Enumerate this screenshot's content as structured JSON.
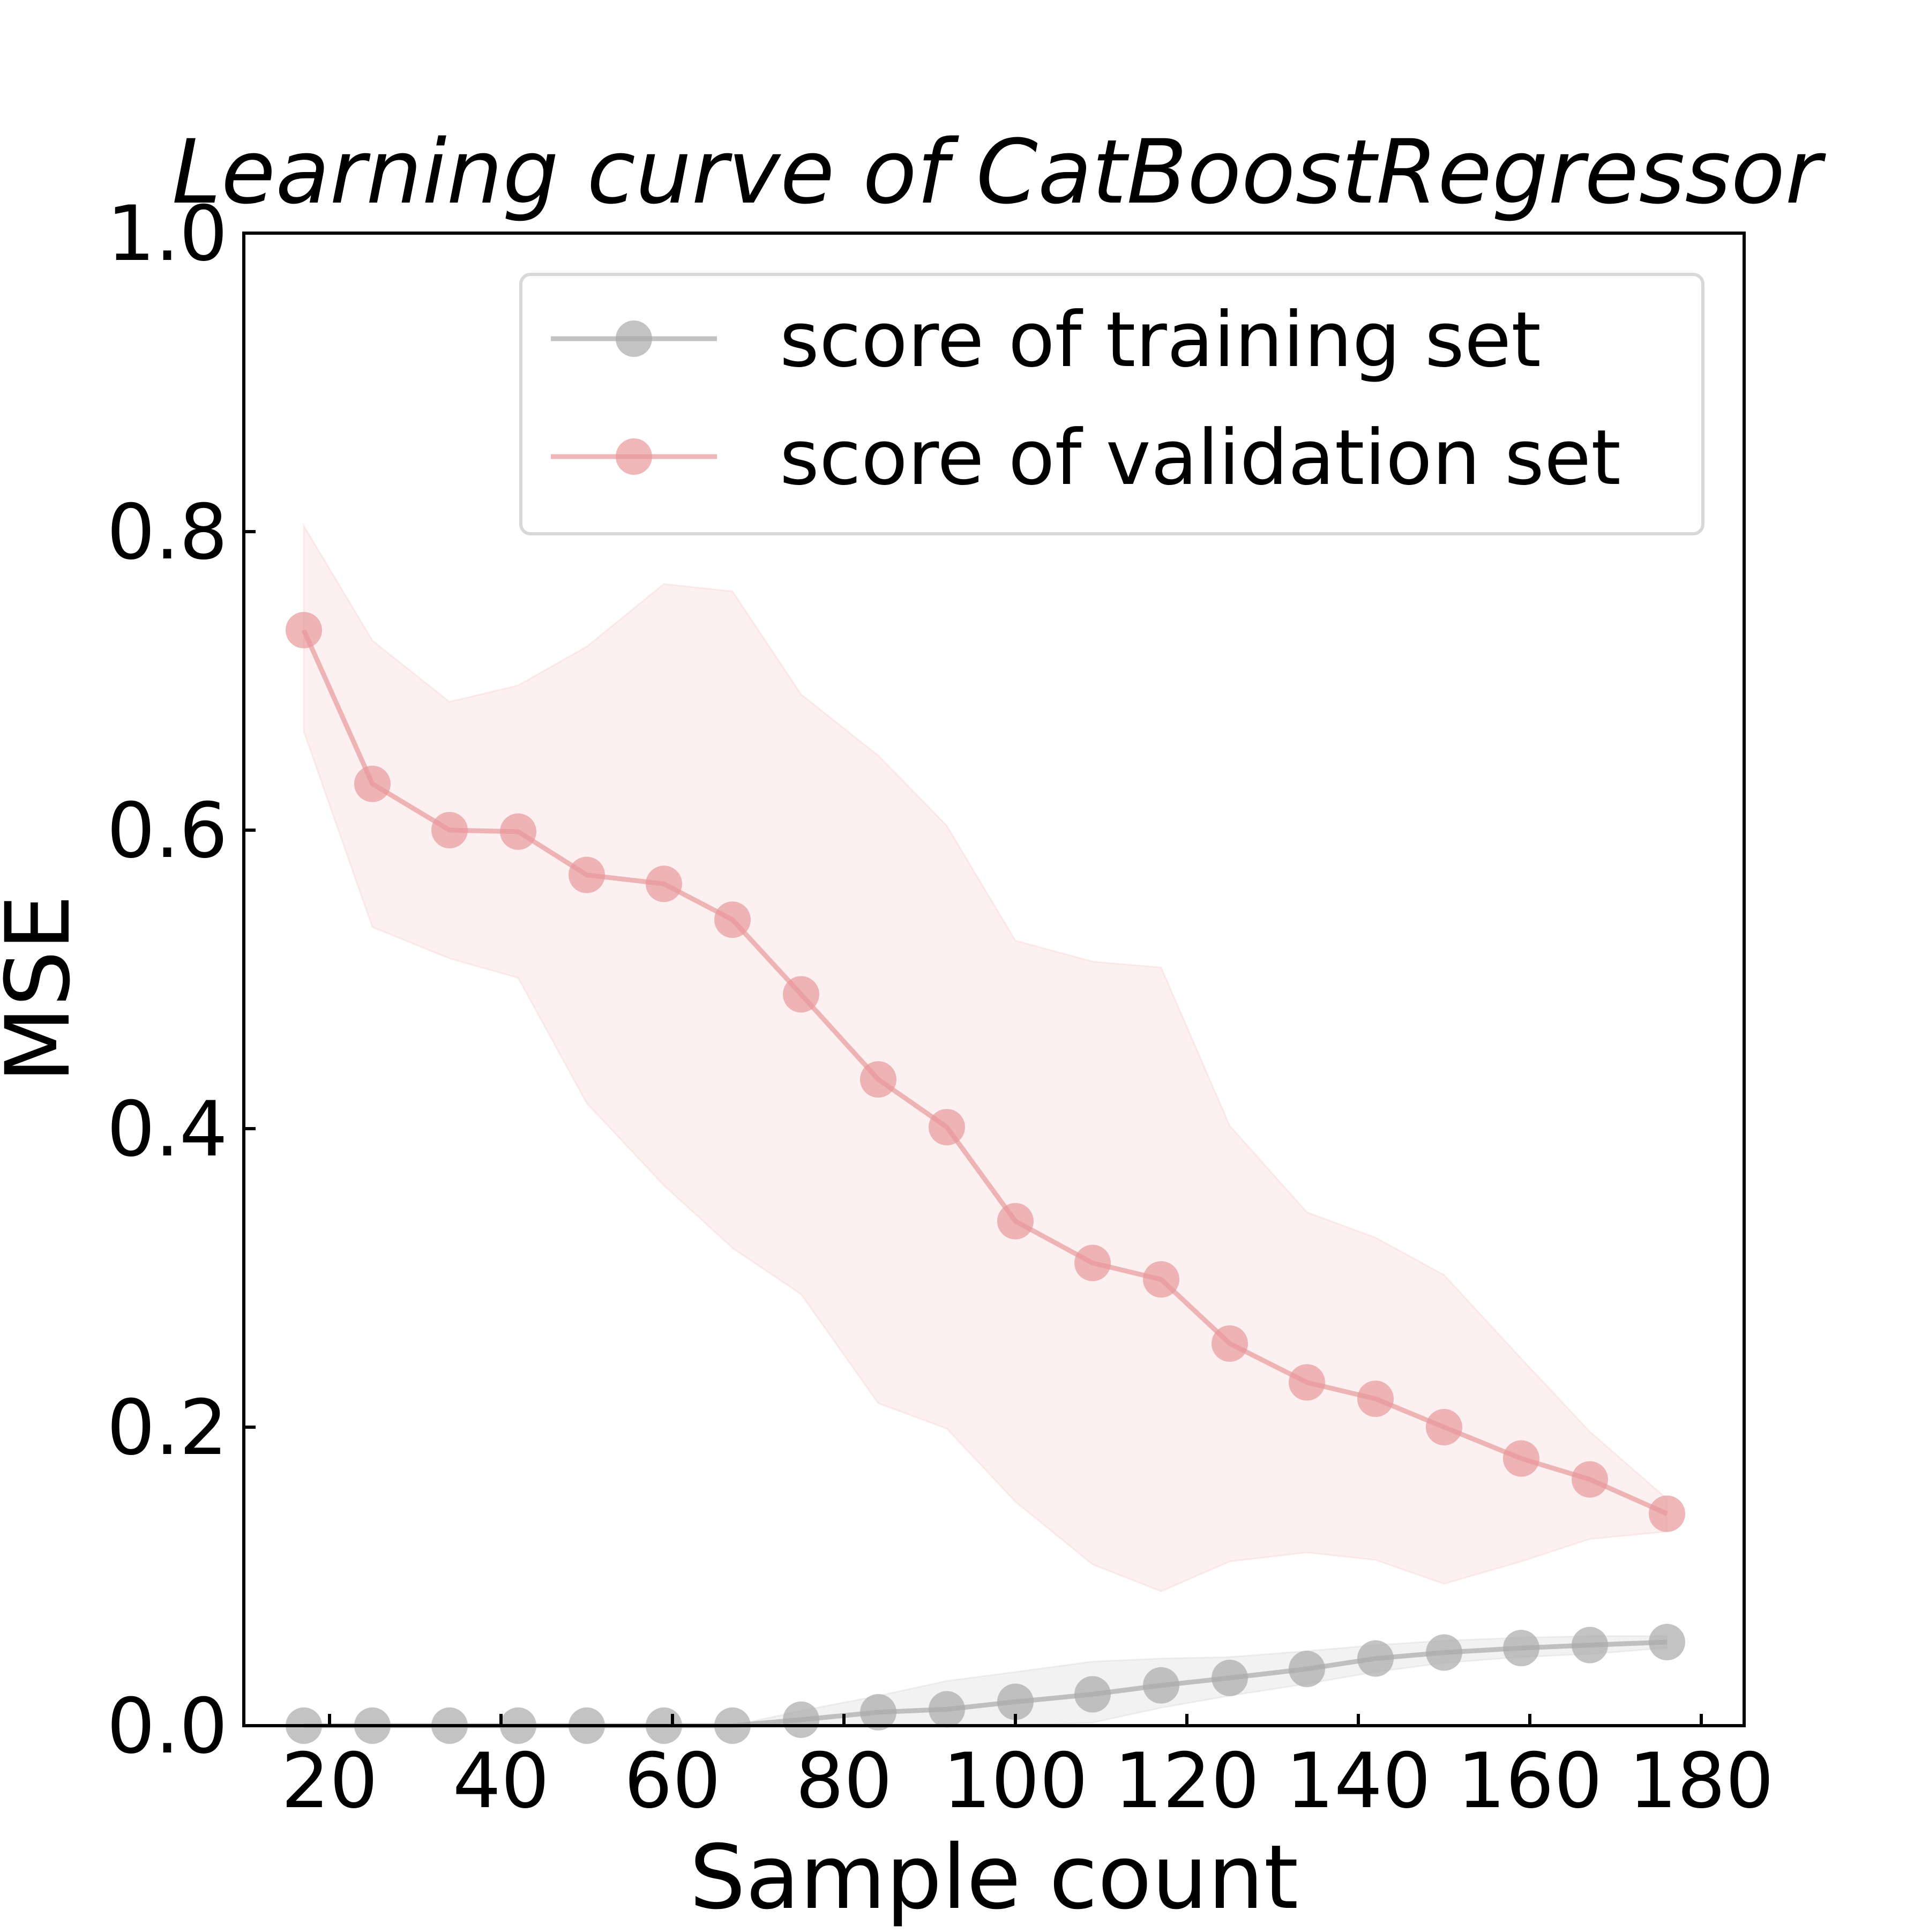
{
  "chart_data": {
    "type": "line",
    "title": "Learning curve of CatBoostRegressor",
    "xlabel": "Sample count",
    "ylabel": "MSE",
    "xlim": [
      10,
      185
    ],
    "ylim": [
      0.0,
      1.0
    ],
    "xticks": [
      "20",
      "40",
      "60",
      "80",
      "100",
      "120",
      "140",
      "160",
      "180"
    ],
    "xtick_values": [
      20,
      40,
      60,
      80,
      100,
      120,
      140,
      160,
      180
    ],
    "yticks": [
      "0.0",
      "0.2",
      "0.4",
      "0.6",
      "0.8",
      "1.0"
    ],
    "ytick_values": [
      0.0,
      0.2,
      0.4,
      0.6,
      0.8,
      1.0
    ],
    "grid": false,
    "legend_position": "top-right",
    "x": [
      17,
      25,
      34,
      42,
      50,
      59,
      67,
      75,
      84,
      92,
      100,
      109,
      117,
      125,
      134,
      142,
      150,
      159,
      167,
      176
    ],
    "series": [
      {
        "name": "score of training set",
        "color": "#a9a9a9",
        "values": [
          0.0,
          0.0,
          0.0,
          0.0,
          0.0,
          0.0,
          0.0,
          0.004,
          0.009,
          0.011,
          0.016,
          0.021,
          0.027,
          0.032,
          0.038,
          0.045,
          0.049,
          0.052,
          0.054,
          0.056
        ],
        "band_upper": [
          0.0,
          0.0,
          0.0,
          0.0,
          0.0,
          0.0,
          0.0,
          0.01,
          0.02,
          0.03,
          0.036,
          0.043,
          0.045,
          0.046,
          0.05,
          0.054,
          0.057,
          0.059,
          0.06,
          0.06
        ],
        "band_lower": [
          0.0,
          0.0,
          0.0,
          0.0,
          0.0,
          0.0,
          0.0,
          0.0,
          0.0,
          0.0,
          0.0,
          0.002,
          0.012,
          0.02,
          0.028,
          0.036,
          0.042,
          0.046,
          0.048,
          0.052
        ]
      },
      {
        "name": "score of validation set",
        "color": "#e8999a",
        "values": [
          0.734,
          0.631,
          0.6,
          0.599,
          0.57,
          0.564,
          0.54,
          0.49,
          0.433,
          0.401,
          0.338,
          0.31,
          0.299,
          0.256,
          0.23,
          0.219,
          0.2,
          0.179,
          0.165,
          0.142
        ],
        "band_upper": [
          0.804,
          0.727,
          0.686,
          0.697,
          0.723,
          0.765,
          0.76,
          0.691,
          0.65,
          0.603,
          0.526,
          0.512,
          0.508,
          0.402,
          0.344,
          0.327,
          0.302,
          0.246,
          0.197,
          0.152
        ],
        "band_lower": [
          0.666,
          0.535,
          0.514,
          0.501,
          0.417,
          0.362,
          0.32,
          0.289,
          0.216,
          0.199,
          0.15,
          0.108,
          0.09,
          0.11,
          0.116,
          0.111,
          0.095,
          0.11,
          0.125,
          0.13
        ]
      }
    ]
  }
}
